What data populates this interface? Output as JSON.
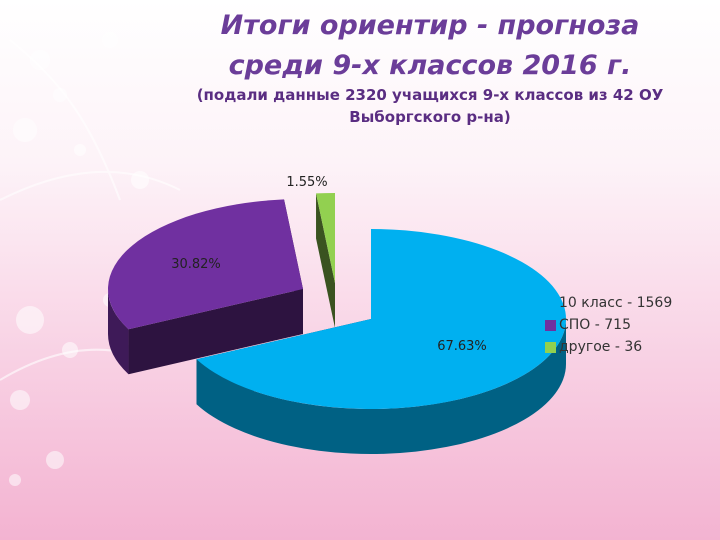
{
  "title_line1": "Итоги ориентир - прогноза",
  "title_line2": "среди 9-х классов 2016 г.",
  "subtitle_line1": "(подали данные 2320 учащихся 9-х классов из 42 ОУ",
  "subtitle_line2": "Выборгского р-на)",
  "chart_data": {
    "type": "pie",
    "style": "3d-exploded",
    "categories": [
      "10 класс - 1569",
      "СПО - 715",
      "другое - 36"
    ],
    "values": [
      1569,
      715,
      36
    ],
    "percent_labels": [
      "67.63%",
      "30.82%",
      "1.55%"
    ],
    "colors": [
      "#00b0f0",
      "#7030a0",
      "#92d050"
    ],
    "legend_position": "right"
  }
}
